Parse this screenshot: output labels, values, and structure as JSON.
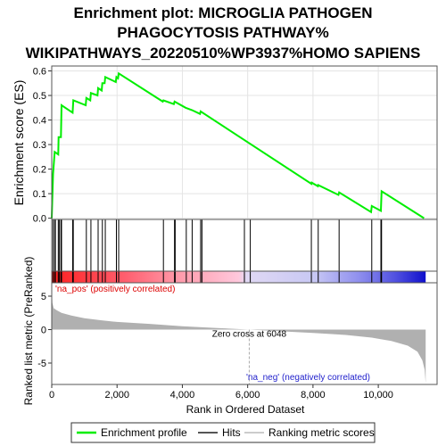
{
  "chart_data": {
    "type": "line",
    "title_lines": [
      "Enrichment plot: MICROGLIA PATHOGEN",
      "PHAGOCYTOSIS PATHWAY%",
      "WIKIPATHWAYS_20220510%WP3937%HOMO SAPIENS"
    ],
    "xlabel": "Rank in Ordered Dataset",
    "ylabel_top": "Enrichment score (ES)",
    "ylabel_bottom": "Ranked list metric (PreRanked)",
    "xlim": [
      0,
      11800
    ],
    "x_ticks": [
      0,
      2000,
      4000,
      6000,
      8000,
      10000
    ],
    "x_tick_labels": [
      "0",
      "2,000",
      "4,000",
      "6,000",
      "8,000",
      "10,000"
    ],
    "es_ylim": [
      -0.005,
      0.62
    ],
    "es_ticks": [
      0.0,
      0.1,
      0.2,
      0.3,
      0.4,
      0.5,
      0.6
    ],
    "es_tick_labels": [
      "0.0",
      "0.1",
      "0.2",
      "0.3",
      "0.4",
      "0.5",
      "0.6"
    ],
    "metric_ylim": [
      -8.2,
      7.0
    ],
    "metric_ticks": [
      5,
      0,
      -5
    ],
    "metric_tick_labels": [
      "5",
      "0",
      "-5"
    ],
    "enrichment_profile": {
      "name": "Enrichment profile",
      "color": "#00ee00",
      "points": [
        [
          0,
          0.0
        ],
        [
          40,
          0.18
        ],
        [
          90,
          0.27
        ],
        [
          200,
          0.26
        ],
        [
          210,
          0.33
        ],
        [
          280,
          0.33
        ],
        [
          300,
          0.46
        ],
        [
          640,
          0.43
        ],
        [
          660,
          0.48
        ],
        [
          1040,
          0.46
        ],
        [
          1060,
          0.49
        ],
        [
          1180,
          0.48
        ],
        [
          1200,
          0.51
        ],
        [
          1400,
          0.5
        ],
        [
          1420,
          0.53
        ],
        [
          1530,
          0.52
        ],
        [
          1550,
          0.55
        ],
        [
          1620,
          0.55
        ],
        [
          1640,
          0.575
        ],
        [
          1960,
          0.555
        ],
        [
          1980,
          0.575
        ],
        [
          2030,
          0.57
        ],
        [
          2050,
          0.59
        ],
        [
          3400,
          0.475
        ],
        [
          3420,
          0.48
        ],
        [
          3740,
          0.465
        ],
        [
          3760,
          0.475
        ],
        [
          4100,
          0.45
        ],
        [
          4300,
          0.44
        ],
        [
          4540,
          0.425
        ],
        [
          4560,
          0.435
        ],
        [
          7950,
          0.14
        ],
        [
          7960,
          0.145
        ],
        [
          8150,
          0.13
        ],
        [
          8160,
          0.135
        ],
        [
          8780,
          0.095
        ],
        [
          8800,
          0.105
        ],
        [
          9780,
          0.025
        ],
        [
          9800,
          0.05
        ],
        [
          10080,
          0.03
        ],
        [
          10100,
          0.11
        ],
        [
          11400,
          0.0
        ]
      ]
    },
    "hits": [
      40,
      90,
      110,
      200,
      230,
      280,
      300,
      640,
      660,
      1060,
      1200,
      1420,
      1550,
      1640,
      1980,
      2050,
      3420,
      3760,
      3780,
      4120,
      4300,
      4560,
      4600,
      5900,
      6080,
      7950,
      8160,
      8800,
      9800,
      10080,
      10100
    ],
    "metric_curve": [
      [
        0,
        6.5
      ],
      [
        20,
        4.0
      ],
      [
        60,
        3.2
      ],
      [
        150,
        2.9
      ],
      [
        300,
        2.5
      ],
      [
        600,
        2.1
      ],
      [
        1000,
        1.7
      ],
      [
        1500,
        1.4
      ],
      [
        2000,
        1.15
      ],
      [
        3000,
        0.85
      ],
      [
        4000,
        0.5
      ],
      [
        5000,
        0.25
      ],
      [
        6048,
        0.0
      ],
      [
        7000,
        -0.25
      ],
      [
        8000,
        -0.5
      ],
      [
        9000,
        -0.8
      ],
      [
        9800,
        -1.2
      ],
      [
        10400,
        -1.7
      ],
      [
        10900,
        -2.4
      ],
      [
        11200,
        -3.3
      ],
      [
        11350,
        -4.6
      ],
      [
        11420,
        -6.0
      ],
      [
        11450,
        -8.0
      ]
    ],
    "zero_cross": 6048,
    "zero_cross_label": "Zero cross at 6048",
    "pos_label": "'na_pos' (positively correlated)",
    "neg_label": "'na_neg' (negatively correlated)",
    "colors": {
      "profile": "#00ee00",
      "hits": "#000000",
      "metric_fill": "#b0b0b0",
      "pos_text": "#dd0000",
      "neg_text": "#2222cc",
      "zero_line": "#aaaaaa"
    },
    "legend": [
      {
        "name": "Enrichment profile",
        "color": "#00ee00",
        "style": "line"
      },
      {
        "name": "Hits",
        "color": "#555555",
        "style": "line"
      },
      {
        "name": "Ranking metric scores",
        "color": "#cccccc",
        "style": "line"
      }
    ]
  }
}
